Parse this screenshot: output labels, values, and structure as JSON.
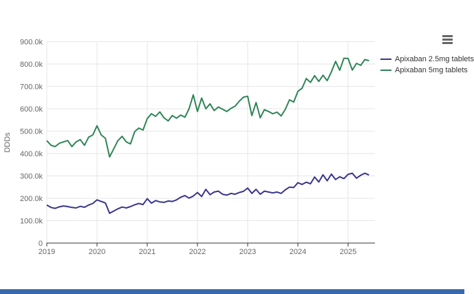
{
  "colors": {
    "series_2_5mg": "#39348B",
    "series_5mg": "#2E8456",
    "grid": "#e6e6e6",
    "axis_line": "#333333",
    "tick_label": "#666666",
    "legend_text": "#333333",
    "context_icon": "#666666",
    "bottom_bar": "#3A68AD",
    "background": "#ffffff"
  },
  "context_menu": {
    "icon": "hamburger-icon"
  },
  "chart_data": {
    "type": "line",
    "title": "",
    "xlabel": "",
    "ylabel": "DDDs",
    "ylim": [
      0,
      900000
    ],
    "grid": true,
    "legend_position": "right",
    "x_unit": "month",
    "x_range": [
      "2019-01",
      "2025-06"
    ],
    "x_tick_labels": [
      "2019",
      "2020",
      "2021",
      "2022",
      "2023",
      "2024",
      "2025"
    ],
    "y_tick_labels": [
      "0",
      "100.0k",
      "200.0k",
      "300.0k",
      "400.0k",
      "500.0k",
      "600.0k",
      "700.0k",
      "800.0k",
      "900.0k"
    ],
    "unit_note": "values_k are DDDs in thousands, monthly Jan 2019 - Jun 2025",
    "series": [
      {
        "name": "Apixaban 2.5mg tablets",
        "color": "#39348B",
        "values_k": [
          170,
          159,
          155,
          162,
          166,
          163,
          159,
          157,
          164,
          160,
          170,
          177,
          193,
          186,
          179,
          133,
          143,
          153,
          161,
          157,
          163,
          171,
          177,
          172,
          198,
          178,
          190,
          184,
          182,
          188,
          186,
          193,
          205,
          212,
          201,
          210,
          226,
          208,
          240,
          216,
          228,
          232,
          218,
          214,
          222,
          218,
          226,
          231,
          246,
          222,
          240,
          218,
          232,
          228,
          224,
          228,
          222,
          238,
          250,
          248,
          270,
          262,
          272,
          265,
          295,
          273,
          305,
          278,
          308,
          284,
          296,
          288,
          307,
          312,
          290,
          303,
          312,
          304
        ]
      },
      {
        "name": "Apixaban 5mg tablets",
        "color": "#2E8456",
        "values_k": [
          458,
          437,
          431,
          446,
          452,
          458,
          431,
          452,
          462,
          437,
          473,
          483,
          524,
          483,
          468,
          385,
          421,
          458,
          477,
          452,
          443,
          498,
          514,
          505,
          556,
          578,
          566,
          586,
          560,
          546,
          570,
          558,
          572,
          562,
          600,
          662,
          588,
          648,
          600,
          622,
          592,
          608,
          598,
          588,
          602,
          612,
          634,
          652,
          656,
          570,
          628,
          560,
          596,
          588,
          578,
          585,
          568,
          598,
          640,
          630,
          678,
          692,
          735,
          718,
          748,
          722,
          750,
          726,
          765,
          812,
          772,
          826,
          825,
          773,
          803,
          794,
          820,
          815
        ]
      }
    ]
  }
}
